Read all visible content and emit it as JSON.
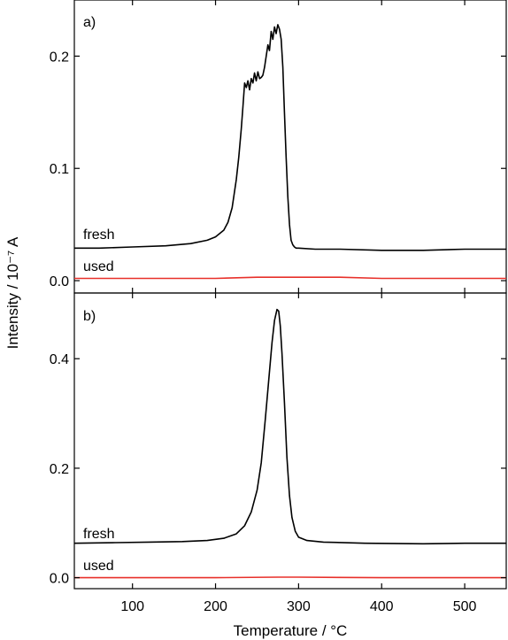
{
  "chart_data": [
    {
      "type": "line",
      "panel_label": "a)",
      "xlim": [
        30,
        550
      ],
      "ylim": [
        -0.011,
        0.25
      ],
      "yticks": [
        0.0,
        0.1,
        0.2
      ],
      "ytick_labels": [
        "0.0",
        "0.1",
        "0.2"
      ],
      "series": [
        {
          "name": "fresh",
          "color": "#000000",
          "x": [
            30,
            60,
            100,
            140,
            170,
            190,
            200,
            210,
            215,
            220,
            225,
            228,
            231,
            233,
            235,
            237,
            239,
            241,
            243,
            245,
            247,
            249,
            251,
            253,
            255,
            257,
            259,
            261,
            263,
            265,
            267,
            269,
            271,
            273,
            275,
            277,
            279,
            281,
            283,
            285,
            287,
            289,
            291,
            293,
            295,
            297,
            300,
            320,
            350,
            400,
            450,
            500,
            550
          ],
          "y": [
            0.029,
            0.029,
            0.03,
            0.031,
            0.033,
            0.036,
            0.039,
            0.045,
            0.052,
            0.065,
            0.09,
            0.11,
            0.135,
            0.155,
            0.176,
            0.172,
            0.178,
            0.17,
            0.18,
            0.176,
            0.185,
            0.178,
            0.186,
            0.18,
            0.181,
            0.183,
            0.19,
            0.2,
            0.21,
            0.205,
            0.222,
            0.215,
            0.226,
            0.22,
            0.228,
            0.224,
            0.215,
            0.19,
            0.15,
            0.11,
            0.075,
            0.05,
            0.036,
            0.032,
            0.03,
            0.029,
            0.029,
            0.028,
            0.028,
            0.027,
            0.027,
            0.028,
            0.028
          ]
        },
        {
          "name": "used",
          "color": "#e8302a",
          "x": [
            30,
            100,
            200,
            250,
            300,
            350,
            400,
            450,
            500,
            550
          ],
          "y": [
            0.002,
            0.002,
            0.002,
            0.003,
            0.003,
            0.003,
            0.002,
            0.002,
            0.002,
            0.002
          ]
        }
      ]
    },
    {
      "type": "line",
      "panel_label": "b)",
      "xlim": [
        30,
        550
      ],
      "ylim": [
        -0.02,
        0.52
      ],
      "yticks": [
        0.0,
        0.2,
        0.4
      ],
      "ytick_labels": [
        "0.0",
        "0.2",
        "0.4"
      ],
      "xticks": [
        100,
        200,
        300,
        400,
        500
      ],
      "xtick_labels": [
        "100",
        "200",
        "300",
        "400",
        "500"
      ],
      "series": [
        {
          "name": "fresh",
          "color": "#000000",
          "x": [
            30,
            80,
            120,
            160,
            190,
            210,
            225,
            235,
            243,
            250,
            255,
            260,
            264,
            268,
            271,
            274,
            276,
            278,
            280,
            283,
            286,
            289,
            292,
            296,
            300,
            310,
            330,
            380,
            450,
            500,
            550
          ],
          "y": [
            0.063,
            0.064,
            0.065,
            0.066,
            0.068,
            0.072,
            0.08,
            0.095,
            0.12,
            0.16,
            0.21,
            0.29,
            0.36,
            0.43,
            0.47,
            0.49,
            0.487,
            0.46,
            0.41,
            0.32,
            0.22,
            0.15,
            0.11,
            0.085,
            0.074,
            0.068,
            0.065,
            0.063,
            0.062,
            0.063,
            0.063
          ]
        },
        {
          "name": "used",
          "color": "#e8302a",
          "x": [
            30,
            100,
            200,
            275,
            300,
            400,
            500,
            550
          ],
          "y": [
            0.0,
            0.0,
            0.0,
            0.001,
            0.001,
            0.0,
            0.0,
            0.0
          ]
        }
      ]
    }
  ],
  "labels": {
    "xlabel": "Temperature / °C",
    "ylabel": "Intensity / 10⁻⁷ A"
  }
}
